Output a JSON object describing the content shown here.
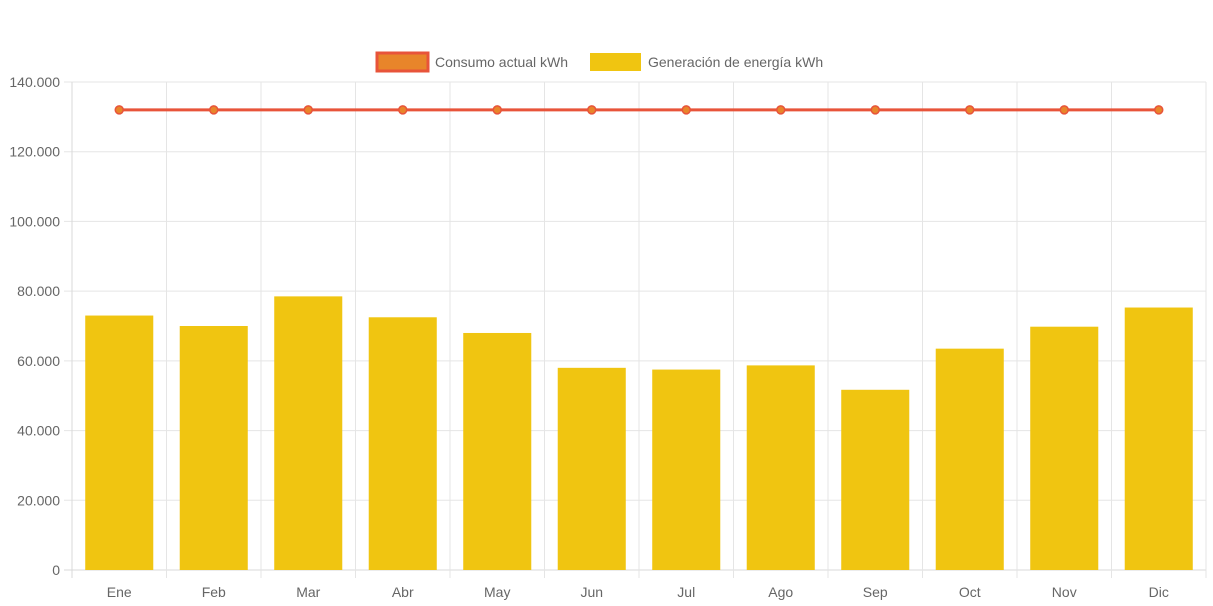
{
  "colors": {
    "line": "#e8543a",
    "point_fill": "#e8852a",
    "bar": "#f0c511",
    "grid": "#e5e5e5",
    "axis": "#d9d9d9",
    "text": "#666666"
  },
  "chart_data": {
    "type": "bar",
    "title": "",
    "xlabel": "",
    "ylabel": "",
    "ylim": [
      0,
      140000
    ],
    "y_ticks": [
      0,
      20000,
      40000,
      60000,
      80000,
      100000,
      120000,
      140000
    ],
    "y_tick_labels": [
      "0",
      "20.000",
      "40.000",
      "60.000",
      "80.000",
      "100.000",
      "120.000",
      "140.000"
    ],
    "categories": [
      "Ene",
      "Feb",
      "Mar",
      "Abr",
      "May",
      "Jun",
      "Jul",
      "Ago",
      "Sep",
      "Oct",
      "Nov",
      "Dic"
    ],
    "grid": true,
    "legend_position": "top-center",
    "series": [
      {
        "name": "Consumo actual kWh",
        "type": "line",
        "values": [
          132000,
          132000,
          132000,
          132000,
          132000,
          132000,
          132000,
          132000,
          132000,
          132000,
          132000,
          132000
        ]
      },
      {
        "name": "Generación de energía kWh",
        "type": "bar",
        "values": [
          73000,
          70000,
          78500,
          72500,
          68000,
          58000,
          57500,
          58700,
          51700,
          63500,
          69800,
          75300
        ]
      }
    ]
  }
}
